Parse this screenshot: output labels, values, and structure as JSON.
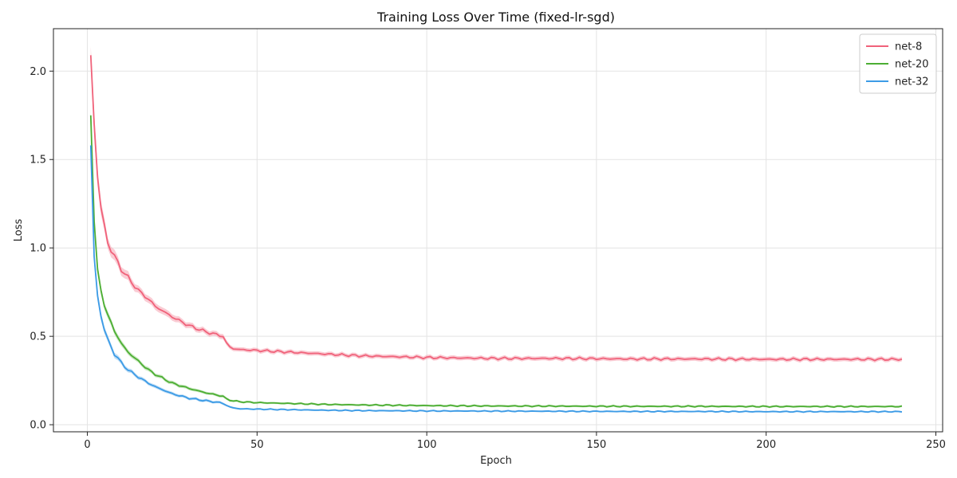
{
  "chart_data": {
    "type": "line",
    "title": "Training Loss Over Time (fixed-lr-sgd)",
    "xlabel": "Epoch",
    "ylabel": "Loss",
    "xlim": [
      -10,
      252
    ],
    "ylim": [
      -0.04,
      2.24
    ],
    "x_ticks": [
      0,
      50,
      100,
      150,
      200,
      250
    ],
    "y_ticks": [
      0.0,
      0.5,
      1.0,
      1.5,
      2.0
    ],
    "grid": true,
    "legend_position": "top-right",
    "series": [
      {
        "name": "net-8",
        "color": "#f0627a",
        "band_color": "#f7aab7",
        "x": [
          1,
          2,
          3,
          4,
          5,
          6,
          8,
          10,
          12,
          15,
          18,
          20,
          25,
          30,
          35,
          39,
          40,
          41,
          42,
          43,
          45,
          50,
          60,
          70,
          80,
          90,
          100,
          120,
          140,
          160,
          180,
          200,
          220,
          240
        ],
        "y": [
          2.09,
          1.7,
          1.4,
          1.23,
          1.12,
          1.03,
          0.95,
          0.88,
          0.83,
          0.76,
          0.71,
          0.67,
          0.61,
          0.56,
          0.525,
          0.505,
          0.5,
          0.46,
          0.44,
          0.43,
          0.425,
          0.42,
          0.41,
          0.4,
          0.39,
          0.385,
          0.38,
          0.375,
          0.375,
          0.372,
          0.372,
          0.37,
          0.37,
          0.37
        ],
        "band": [
          0.05,
          0.07,
          0.05,
          0.04,
          0.035,
          0.03,
          0.03,
          0.025,
          0.025,
          0.02,
          0.02,
          0.02,
          0.018,
          0.016,
          0.015,
          0.015,
          0.015,
          0.014,
          0.013,
          0.012,
          0.012,
          0.012,
          0.012,
          0.012,
          0.012,
          0.012,
          0.012,
          0.012,
          0.012,
          0.012,
          0.012,
          0.012,
          0.012,
          0.012
        ]
      },
      {
        "name": "net-20",
        "color": "#4cae33",
        "band_color": "#a8d89a",
        "x": [
          1,
          2,
          3,
          4,
          5,
          6,
          8,
          10,
          12,
          15,
          18,
          20,
          25,
          30,
          35,
          39,
          40,
          41,
          42,
          43,
          45,
          50,
          60,
          70,
          80,
          90,
          100,
          120,
          140,
          160,
          180,
          200,
          220,
          240
        ],
        "y": [
          1.75,
          1.15,
          0.88,
          0.76,
          0.68,
          0.62,
          0.53,
          0.46,
          0.41,
          0.36,
          0.31,
          0.285,
          0.235,
          0.205,
          0.18,
          0.165,
          0.16,
          0.145,
          0.14,
          0.135,
          0.13,
          0.125,
          0.12,
          0.115,
          0.112,
          0.11,
          0.108,
          0.106,
          0.105,
          0.104,
          0.104,
          0.103,
          0.103,
          0.103
        ],
        "band": [
          0.04,
          0.04,
          0.03,
          0.025,
          0.02,
          0.02,
          0.018,
          0.016,
          0.014,
          0.012,
          0.012,
          0.01,
          0.01,
          0.009,
          0.008,
          0.008,
          0.008,
          0.007,
          0.007,
          0.006,
          0.006,
          0.006,
          0.006,
          0.006,
          0.006,
          0.006,
          0.006,
          0.006,
          0.006,
          0.006,
          0.006,
          0.006,
          0.006,
          0.006
        ]
      },
      {
        "name": "net-32",
        "color": "#3c9be6",
        "band_color": "#9ccbf0",
        "x": [
          1,
          2,
          3,
          4,
          5,
          6,
          8,
          10,
          12,
          15,
          18,
          20,
          25,
          30,
          35,
          39,
          40,
          41,
          42,
          43,
          45,
          50,
          60,
          70,
          80,
          90,
          100,
          120,
          140,
          160,
          180,
          200,
          220,
          240
        ],
        "y": [
          1.58,
          0.95,
          0.73,
          0.62,
          0.54,
          0.48,
          0.4,
          0.35,
          0.31,
          0.27,
          0.235,
          0.215,
          0.175,
          0.15,
          0.135,
          0.125,
          0.12,
          0.11,
          0.1,
          0.095,
          0.09,
          0.088,
          0.085,
          0.082,
          0.08,
          0.079,
          0.078,
          0.077,
          0.076,
          0.075,
          0.075,
          0.074,
          0.074,
          0.074
        ],
        "band": [
          0.04,
          0.04,
          0.03,
          0.025,
          0.02,
          0.018,
          0.016,
          0.014,
          0.012,
          0.011,
          0.01,
          0.01,
          0.009,
          0.008,
          0.008,
          0.007,
          0.007,
          0.006,
          0.006,
          0.006,
          0.005,
          0.005,
          0.005,
          0.005,
          0.005,
          0.005,
          0.005,
          0.005,
          0.005,
          0.005,
          0.005,
          0.005,
          0.005,
          0.005
        ]
      }
    ]
  }
}
